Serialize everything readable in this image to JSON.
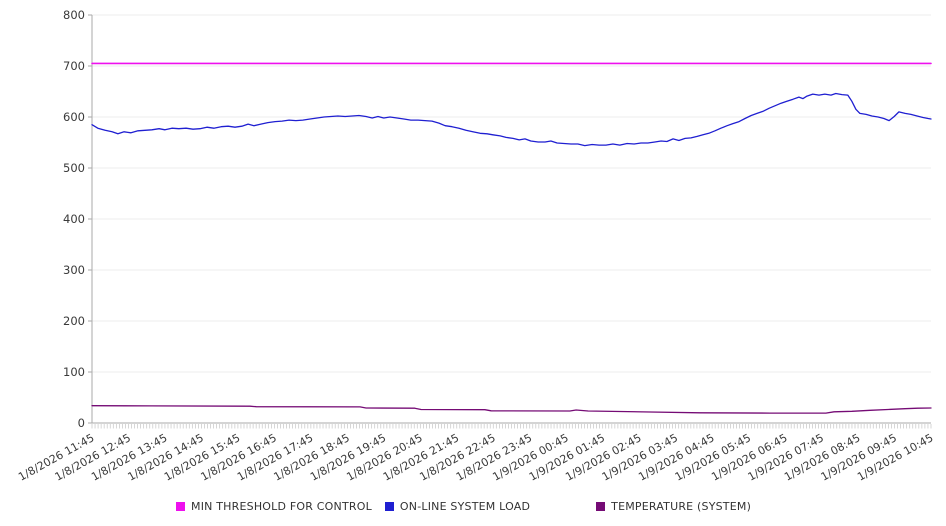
{
  "legend": {
    "items": [
      {
        "label": "MIN THRESHOLD FOR CONTROL",
        "color": "#EE10EE"
      },
      {
        "label": "ON-LINE SYSTEM LOAD",
        "color": "#1F1FD1"
      },
      {
        "label": "TEMPERATURE (SYSTEM)",
        "color": "#750B75"
      }
    ]
  },
  "chart_data": {
    "type": "line",
    "title": "",
    "xlabel": "",
    "ylabel": "",
    "ylim": [
      0,
      800
    ],
    "y_ticks": [
      0,
      100,
      200,
      300,
      400,
      500,
      600,
      700,
      800
    ],
    "grid": true,
    "legend_position": "bottom",
    "x_labels": [
      "1/8/2026 11:45",
      "1/8/2026 12:45",
      "1/8/2026 13:45",
      "1/8/2026 14:45",
      "1/8/2026 15:45",
      "1/8/2026 16:45",
      "1/8/2026 17:45",
      "1/8/2026 18:45",
      "1/8/2026 19:45",
      "1/8/2026 20:45",
      "1/8/2026 21:45",
      "1/8/2026 22:45",
      "1/8/2026 23:45",
      "1/9/2026 00:45",
      "1/9/2026 01:45",
      "1/9/2026 02:45",
      "1/9/2026 03:45",
      "1/9/2026 04:45",
      "1/9/2026 05:45",
      "1/9/2026 06:45",
      "1/9/2026 07:45",
      "1/9/2026 08:45",
      "1/9/2026 09:45",
      "1/9/2026 10:45"
    ],
    "x_unit": "hours from 1/8/2026 11:45",
    "x_range": [
      0,
      23
    ],
    "series": [
      {
        "name": "MIN THRESHOLD FOR CONTROL",
        "color": "#EE10EE",
        "width": 1.6,
        "points": [
          [
            0,
            705
          ],
          [
            23,
            705
          ]
        ]
      },
      {
        "name": "ON-LINE SYSTEM LOAD",
        "color": "#1F1FD1",
        "width": 1.3,
        "points": [
          [
            0,
            585
          ],
          [
            0.16,
            578
          ],
          [
            0.36,
            574
          ],
          [
            0.55,
            571
          ],
          [
            0.71,
            567
          ],
          [
            0.88,
            571
          ],
          [
            1.07,
            569
          ],
          [
            1.26,
            573
          ],
          [
            1.45,
            574
          ],
          [
            1.64,
            575
          ],
          [
            1.84,
            577
          ],
          [
            2.0,
            575
          ],
          [
            2.19,
            578
          ],
          [
            2.38,
            577
          ],
          [
            2.58,
            578
          ],
          [
            2.77,
            576
          ],
          [
            2.96,
            577
          ],
          [
            3.15,
            580
          ],
          [
            3.34,
            578
          ],
          [
            3.54,
            581
          ],
          [
            3.73,
            582
          ],
          [
            3.92,
            580
          ],
          [
            4.11,
            582
          ],
          [
            4.28,
            586
          ],
          [
            4.44,
            583
          ],
          [
            4.63,
            586
          ],
          [
            4.82,
            589
          ],
          [
            5.02,
            591
          ],
          [
            5.21,
            592
          ],
          [
            5.4,
            594
          ],
          [
            5.59,
            593
          ],
          [
            5.78,
            594
          ],
          [
            5.98,
            596
          ],
          [
            6.17,
            598
          ],
          [
            6.36,
            600
          ],
          [
            6.55,
            601
          ],
          [
            6.74,
            602
          ],
          [
            6.94,
            601
          ],
          [
            7.13,
            602
          ],
          [
            7.32,
            603
          ],
          [
            7.51,
            601
          ],
          [
            7.68,
            598
          ],
          [
            7.84,
            601
          ],
          [
            8.0,
            598
          ],
          [
            8.17,
            600
          ],
          [
            8.36,
            598
          ],
          [
            8.55,
            596
          ],
          [
            8.74,
            594
          ],
          [
            8.94,
            594
          ],
          [
            9.13,
            593
          ],
          [
            9.32,
            592
          ],
          [
            9.51,
            588
          ],
          [
            9.68,
            583
          ],
          [
            9.87,
            581
          ],
          [
            10.06,
            578
          ],
          [
            10.25,
            574
          ],
          [
            10.44,
            571
          ],
          [
            10.64,
            568
          ],
          [
            10.83,
            567
          ],
          [
            10.99,
            565
          ],
          [
            11.19,
            563
          ],
          [
            11.35,
            560
          ],
          [
            11.54,
            558
          ],
          [
            11.71,
            555
          ],
          [
            11.87,
            557
          ],
          [
            12.03,
            553
          ],
          [
            12.23,
            551
          ],
          [
            12.42,
            551
          ],
          [
            12.58,
            553
          ],
          [
            12.75,
            549
          ],
          [
            12.94,
            548
          ],
          [
            13.13,
            547
          ],
          [
            13.32,
            547
          ],
          [
            13.51,
            544
          ],
          [
            13.71,
            546
          ],
          [
            13.9,
            545
          ],
          [
            14.09,
            545
          ],
          [
            14.28,
            547
          ],
          [
            14.47,
            545
          ],
          [
            14.67,
            548
          ],
          [
            14.86,
            547
          ],
          [
            15.05,
            549
          ],
          [
            15.24,
            549
          ],
          [
            15.43,
            551
          ],
          [
            15.6,
            553
          ],
          [
            15.76,
            552
          ],
          [
            15.93,
            557
          ],
          [
            16.09,
            554
          ],
          [
            16.26,
            558
          ],
          [
            16.42,
            559
          ],
          [
            16.59,
            562
          ],
          [
            16.75,
            565
          ],
          [
            16.91,
            568
          ],
          [
            17.08,
            573
          ],
          [
            17.24,
            578
          ],
          [
            17.41,
            583
          ],
          [
            17.57,
            587
          ],
          [
            17.74,
            591
          ],
          [
            17.9,
            597
          ],
          [
            18.07,
            603
          ],
          [
            18.23,
            607
          ],
          [
            18.39,
            611
          ],
          [
            18.56,
            617
          ],
          [
            18.72,
            622
          ],
          [
            18.89,
            627
          ],
          [
            19.05,
            631
          ],
          [
            19.22,
            635
          ],
          [
            19.38,
            639
          ],
          [
            19.49,
            636
          ],
          [
            19.6,
            641
          ],
          [
            19.76,
            645
          ],
          [
            19.93,
            643
          ],
          [
            20.09,
            645
          ],
          [
            20.26,
            643
          ],
          [
            20.39,
            646
          ],
          [
            20.56,
            644
          ],
          [
            20.72,
            643
          ],
          [
            20.83,
            631
          ],
          [
            20.94,
            615
          ],
          [
            21.05,
            607
          ],
          [
            21.22,
            605
          ],
          [
            21.38,
            602
          ],
          [
            21.55,
            600
          ],
          [
            21.71,
            597
          ],
          [
            21.85,
            593
          ],
          [
            21.99,
            601
          ],
          [
            22.12,
            610
          ],
          [
            22.29,
            607
          ],
          [
            22.45,
            605
          ],
          [
            22.62,
            602
          ],
          [
            22.78,
            599
          ],
          [
            22.92,
            597
          ],
          [
            23,
            596
          ]
        ]
      },
      {
        "name": "TEMPERATURE (SYSTEM)",
        "color": "#750B75",
        "width": 1.3,
        "points": [
          [
            0,
            34
          ],
          [
            1.59,
            33.5
          ],
          [
            4.33,
            33
          ],
          [
            4.5,
            32
          ],
          [
            7.35,
            31.5
          ],
          [
            7.51,
            29.5
          ],
          [
            8.85,
            29
          ],
          [
            9.02,
            26.5
          ],
          [
            10.77,
            26
          ],
          [
            10.94,
            24
          ],
          [
            13.1,
            23.5
          ],
          [
            13.27,
            25.5
          ],
          [
            13.6,
            23.5
          ],
          [
            15.3,
            21.5
          ],
          [
            16.67,
            20
          ],
          [
            18.59,
            19.5
          ],
          [
            20.12,
            19.5
          ],
          [
            20.34,
            22
          ],
          [
            20.83,
            23
          ],
          [
            21.33,
            25
          ],
          [
            21.82,
            26.5
          ],
          [
            22.29,
            28
          ],
          [
            22.64,
            29
          ],
          [
            23,
            29.5
          ]
        ]
      }
    ],
    "style": {
      "axis_color": "#AAAAAA",
      "grid_color": "#ECECEC",
      "minor_tick_color": "#C5C5C5",
      "label_color": "#3A3A3A",
      "x_label_rotation_deg": -29
    }
  }
}
